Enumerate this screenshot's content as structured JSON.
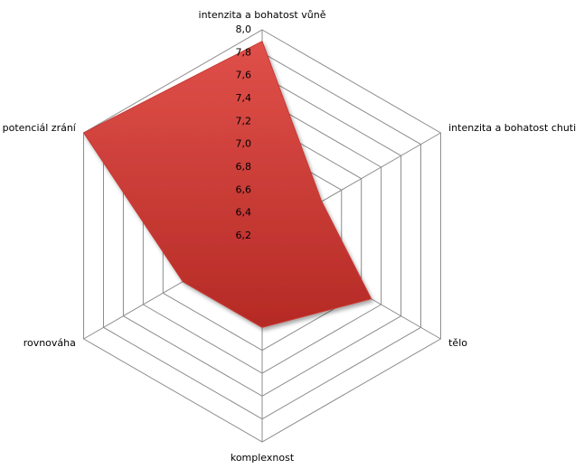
{
  "chart_data": {
    "type": "radar",
    "categories": [
      "intenzita a bohatost vůně",
      "intenzita a bohatost chuti",
      "tělo",
      "komplexnost",
      "rovnováha",
      "potenciál zrání"
    ],
    "values": [
      7.9,
      6.8,
      7.3,
      7.0,
      7.0,
      8.0
    ],
    "color": "#c83a34",
    "rlim": [
      6.2,
      8.0
    ],
    "rticks": [
      {
        "value": 6.2,
        "label": "6,2"
      },
      {
        "value": 6.4,
        "label": "6,4"
      },
      {
        "value": 6.6,
        "label": "6,6"
      },
      {
        "value": 6.8,
        "label": "6,8"
      },
      {
        "value": 7.0,
        "label": "7,0"
      },
      {
        "value": 7.2,
        "label": "7,2"
      },
      {
        "value": 7.4,
        "label": "7,4"
      },
      {
        "value": 7.6,
        "label": "7,6"
      },
      {
        "value": 7.8,
        "label": "7,8"
      },
      {
        "value": 8.0,
        "label": "8,0"
      }
    ],
    "grid": true
  }
}
